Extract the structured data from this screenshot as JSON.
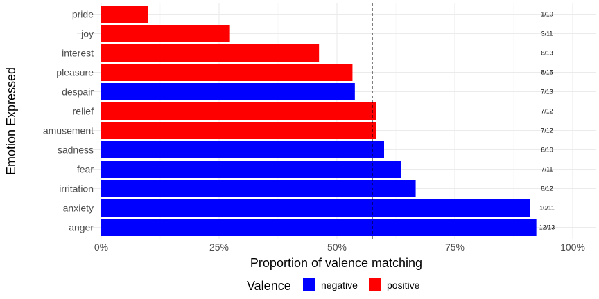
{
  "chart_data": {
    "type": "bar",
    "orientation": "horizontal",
    "xlabel": "Proportion of valence matching",
    "ylabel": "Emotion Expressed",
    "xlim": [
      0,
      1
    ],
    "x_ticks": [
      0,
      0.25,
      0.5,
      0.75,
      1
    ],
    "x_tick_labels": [
      "0%",
      "25%",
      "50%",
      "75%",
      "100%"
    ],
    "reference_line": {
      "x": 0.575,
      "style": "dashed"
    },
    "grid": true,
    "categories": [
      "pride",
      "joy",
      "interest",
      "pleasure",
      "despair",
      "relief",
      "amusement",
      "sadness",
      "fear",
      "irritation",
      "anxiety",
      "anger"
    ],
    "values": [
      0.1,
      0.273,
      0.462,
      0.533,
      0.538,
      0.583,
      0.583,
      0.6,
      0.636,
      0.667,
      0.909,
      0.923
    ],
    "valence": [
      "positive",
      "positive",
      "positive",
      "positive",
      "negative",
      "positive",
      "positive",
      "negative",
      "negative",
      "negative",
      "negative",
      "negative"
    ],
    "data_labels": [
      "1/10",
      "3/11",
      "6/13",
      "8/15",
      "7/13",
      "7/12",
      "7/12",
      "6/10",
      "7/11",
      "8/12",
      "10/11",
      "12/13"
    ],
    "legend": {
      "title": "Valence",
      "position": "bottom",
      "entries": [
        {
          "name": "negative",
          "color": "#0000ff"
        },
        {
          "name": "positive",
          "color": "#ff0000"
        }
      ]
    }
  }
}
